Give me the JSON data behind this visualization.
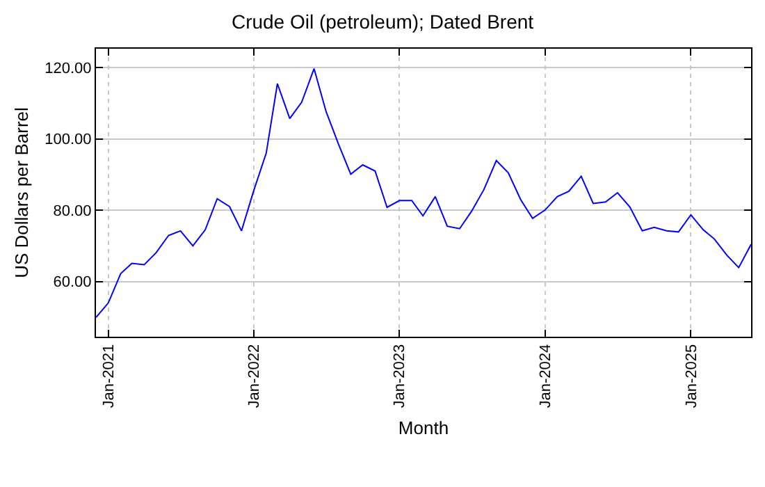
{
  "chart_data": {
    "type": "line",
    "title": "Crude Oil (petroleum); Dated Brent",
    "xlabel": "Month",
    "ylabel": "US Dollars per Barrel",
    "x": [
      "2020-12",
      "2021-01",
      "2021-02",
      "2021-03",
      "2021-04",
      "2021-05",
      "2021-06",
      "2021-07",
      "2021-08",
      "2021-09",
      "2021-10",
      "2021-11",
      "2021-12",
      "2022-01",
      "2022-02",
      "2022-03",
      "2022-04",
      "2022-05",
      "2022-06",
      "2022-07",
      "2022-08",
      "2022-09",
      "2022-10",
      "2022-11",
      "2022-12",
      "2023-01",
      "2023-02",
      "2023-03",
      "2023-04",
      "2023-05",
      "2023-06",
      "2023-07",
      "2023-08",
      "2023-09",
      "2023-10",
      "2023-11",
      "2023-12",
      "2024-01",
      "2024-02",
      "2024-03",
      "2024-04",
      "2024-05",
      "2024-06",
      "2024-07",
      "2024-08",
      "2024-09",
      "2024-10",
      "2024-11",
      "2024-12",
      "2025-01",
      "2025-02",
      "2025-03",
      "2025-04",
      "2025-05",
      "2025-06"
    ],
    "series": [
      {
        "color": "#0000ff",
        "values": [
          49.9,
          54.0,
          62.2,
          65.1,
          64.7,
          68.1,
          72.9,
          74.2,
          70.0,
          74.5,
          83.2,
          81.0,
          74.2,
          85.6,
          96.0,
          115.5,
          105.7,
          110.3,
          119.7,
          107.7,
          98.6,
          90.1,
          92.7,
          91.0,
          80.8,
          82.7,
          82.7,
          78.4,
          83.8,
          75.5,
          74.8,
          79.7,
          85.8,
          93.9,
          90.5,
          83.0,
          77.7,
          80.0,
          83.8,
          85.3,
          89.5,
          81.9,
          82.3,
          84.9,
          80.9,
          74.2,
          75.2,
          74.2,
          73.9,
          78.7,
          74.5,
          71.9,
          67.4,
          63.9,
          70.4
        ]
      }
    ],
    "xlim": [
      "2020-12",
      "2025-06"
    ],
    "xticks": [
      {
        "value": "2021-01",
        "label": "Jan-2021"
      },
      {
        "value": "2022-01",
        "label": "Jan-2022"
      },
      {
        "value": "2023-01",
        "label": "Jan-2023"
      },
      {
        "value": "2024-01",
        "label": "Jan-2024"
      },
      {
        "value": "2025-01",
        "label": "Jan-2025"
      }
    ],
    "ylim": [
      44.5,
      125.3
    ],
    "yticks": [
      {
        "value": 60,
        "label": "60.00"
      },
      {
        "value": 80,
        "label": "80.00"
      },
      {
        "value": 100,
        "label": "100.00"
      },
      {
        "value": 120,
        "label": "120.00"
      }
    ],
    "grid": true,
    "marker": "none",
    "line_style": "solid"
  }
}
